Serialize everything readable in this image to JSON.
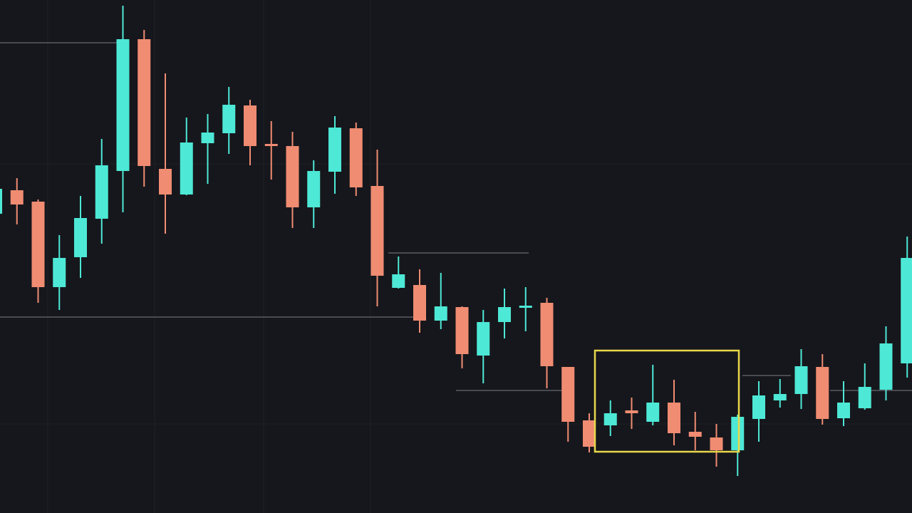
{
  "chart_data": {
    "type": "candlestick",
    "open": [
      420,
      453,
      437,
      317,
      359,
      413,
      480,
      665,
      483,
      447,
      519,
      533,
      572,
      518,
      515,
      429,
      479,
      540,
      459,
      316,
      320,
      270,
      289,
      221,
      268,
      288,
      295,
      205,
      130,
      123,
      144,
      128,
      155,
      114,
      106,
      88,
      132,
      158,
      167,
      205,
      133,
      147,
      173,
      210
    ],
    "high": [
      465,
      470,
      440,
      390,
      445,
      525,
      712,
      678,
      617,
      555,
      560,
      598,
      580,
      550,
      535,
      495,
      557,
      548,
      510,
      360,
      342,
      337,
      290,
      285,
      315,
      317,
      302,
      205,
      140,
      158,
      162,
      208,
      187,
      142,
      125,
      138,
      185,
      188,
      230,
      223,
      185,
      210,
      262,
      388
    ],
    "low": [
      415,
      405,
      295,
      285,
      330,
      378,
      422,
      458,
      392,
      446,
      462,
      504,
      488,
      468,
      400,
      400,
      448,
      445,
      290,
      315,
      253,
      258,
      203,
      182,
      245,
      255,
      175,
      100,
      85,
      108,
      118,
      123,
      95,
      88,
      65,
      52,
      100,
      148,
      146,
      124,
      122,
      145,
      158,
      190
    ],
    "close": [
      455,
      433,
      317,
      358,
      414,
      488,
      665,
      487,
      447,
      520,
      534,
      573,
      515,
      515,
      429,
      480,
      541,
      457,
      333,
      335,
      270,
      290,
      223,
      268,
      289,
      291,
      206,
      128,
      93,
      140,
      140,
      155,
      112,
      107,
      88,
      135,
      165,
      167,
      206,
      132,
      155,
      177,
      238,
      358
    ],
    "up_color": "#4de8d6",
    "down_color": "#f08c72",
    "ylim": [
      0,
      720
    ]
  }
}
